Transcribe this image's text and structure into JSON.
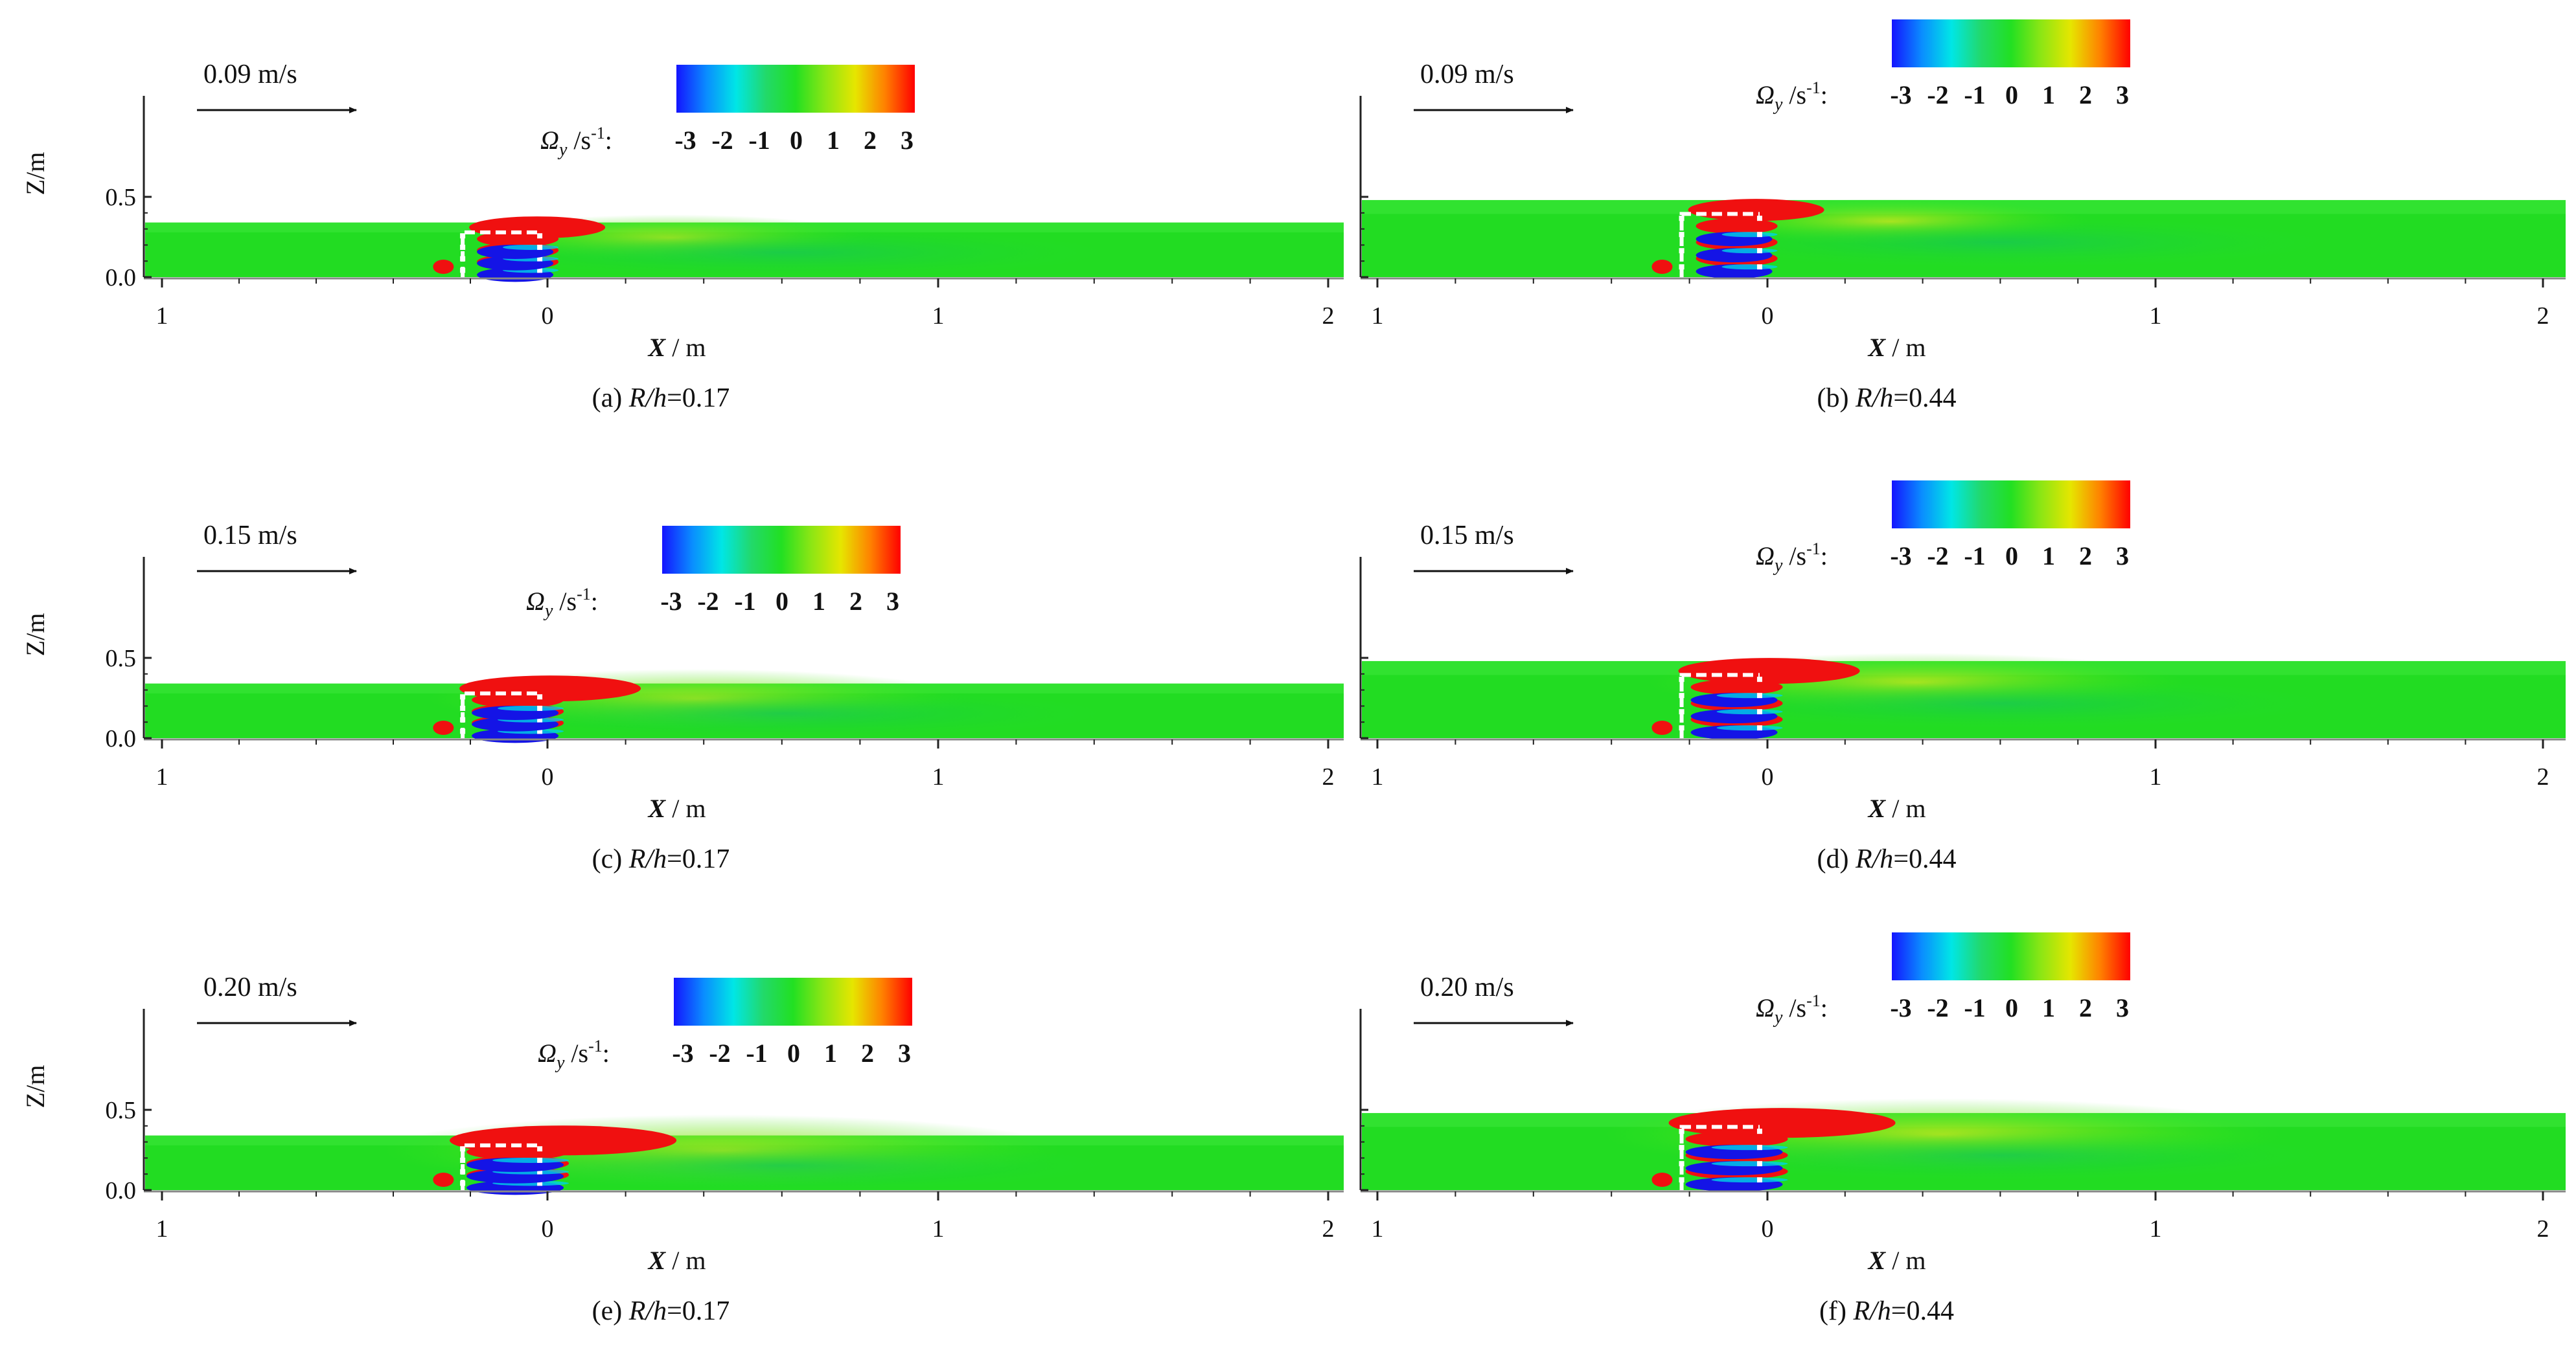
{
  "chart_data": [
    {
      "type": "heatmap",
      "caption_label": "(a)",
      "caption_param": "R/h",
      "caption_value": "=0.17",
      "velocity_label": "0.09 m/s",
      "colorbar_label": "Ω",
      "colorbar_sub": "y",
      "colorbar_unit_a": " /s",
      "colorbar_unit_exp": "-1",
      "colorbar_unit_b": ":",
      "colorbar_ticks": [
        "-3",
        "-2",
        "-1",
        "0",
        "1",
        "2",
        "3"
      ],
      "colorbar_range": [
        -3,
        3
      ],
      "colorbar_colors": [
        "#1414ff",
        "#0a8cff",
        "#00e6e6",
        "#22d96a",
        "#22e022",
        "#8ce614",
        "#e6e600",
        "#ff8000",
        "#ff0000"
      ],
      "xlabel": "X",
      "xlabel_unit": " / m",
      "ylabel": "Z/m",
      "xticks": [
        "1",
        "0",
        "1",
        "2"
      ],
      "yticks": [
        "0.0",
        "0.5"
      ],
      "xlim": [
        -1,
        2
      ],
      "ylim": [
        0,
        0.6
      ],
      "water_depth_m": 0.34,
      "flow_intensity": 1
    },
    {
      "type": "heatmap",
      "caption_label": "(b)",
      "caption_param": "R/h",
      "caption_value": "=0.44",
      "velocity_label": "0.09 m/s",
      "colorbar_label": "Ω",
      "colorbar_sub": "y",
      "colorbar_unit_a": " /s",
      "colorbar_unit_exp": "-1",
      "colorbar_unit_b": ":",
      "colorbar_ticks": [
        "-3",
        "-2",
        "-1",
        "0",
        "1",
        "2",
        "3"
      ],
      "colorbar_range": [
        -3,
        3
      ],
      "colorbar_colors": [
        "#1414ff",
        "#0a8cff",
        "#00e6e6",
        "#22d96a",
        "#22e022",
        "#8ce614",
        "#e6e600",
        "#ff8000",
        "#ff0000"
      ],
      "xlabel": "X",
      "xlabel_unit": " / m",
      "ylabel": "",
      "xticks": [
        "1",
        "0",
        "1",
        "2"
      ],
      "yticks": [
        "",
        ""
      ],
      "xlim": [
        -1,
        2
      ],
      "ylim": [
        0,
        0.6
      ],
      "water_depth_m": 0.48,
      "flow_intensity": 1
    },
    {
      "type": "heatmap",
      "caption_label": "(c)",
      "caption_param": "R/h",
      "caption_value": "=0.17",
      "velocity_label": "0.15 m/s",
      "colorbar_label": "Ω",
      "colorbar_sub": "y",
      "colorbar_unit_a": " /s",
      "colorbar_unit_exp": "-1",
      "colorbar_unit_b": ":",
      "colorbar_ticks": [
        "-3",
        "-2",
        "-1",
        "0",
        "1",
        "2",
        "3"
      ],
      "colorbar_range": [
        -3,
        3
      ],
      "colorbar_colors": [
        "#1414ff",
        "#0a8cff",
        "#00e6e6",
        "#22d96a",
        "#22e022",
        "#8ce614",
        "#e6e600",
        "#ff8000",
        "#ff0000"
      ],
      "xlabel": "X",
      "xlabel_unit": " / m",
      "ylabel": "Z/m",
      "xticks": [
        "1",
        "0",
        "1",
        "2"
      ],
      "yticks": [
        "0.0",
        "0.5"
      ],
      "xlim": [
        -1,
        2
      ],
      "ylim": [
        0,
        0.6
      ],
      "water_depth_m": 0.34,
      "flow_intensity": 2
    },
    {
      "type": "heatmap",
      "caption_label": "(d)",
      "caption_param": "R/h",
      "caption_value": "=0.44",
      "velocity_label": "0.15 m/s",
      "colorbar_label": "Ω",
      "colorbar_sub": "y",
      "colorbar_unit_a": " /s",
      "colorbar_unit_exp": "-1",
      "colorbar_unit_b": ":",
      "colorbar_ticks": [
        "-3",
        "-2",
        "-1",
        "0",
        "1",
        "2",
        "3"
      ],
      "colorbar_range": [
        -3,
        3
      ],
      "colorbar_colors": [
        "#1414ff",
        "#0a8cff",
        "#00e6e6",
        "#22d96a",
        "#22e022",
        "#8ce614",
        "#e6e600",
        "#ff8000",
        "#ff0000"
      ],
      "xlabel": "X",
      "xlabel_unit": " / m",
      "ylabel": "",
      "xticks": [
        "1",
        "0",
        "1",
        "2"
      ],
      "yticks": [
        "",
        ""
      ],
      "xlim": [
        -1,
        2
      ],
      "ylim": [
        0,
        0.6
      ],
      "water_depth_m": 0.48,
      "flow_intensity": 2
    },
    {
      "type": "heatmap",
      "caption_label": "(e)",
      "caption_param": "R/h",
      "caption_value": "=0.17",
      "velocity_label": "0.20 m/s",
      "colorbar_label": "Ω",
      "colorbar_sub": "y",
      "colorbar_unit_a": " /s",
      "colorbar_unit_exp": "-1",
      "colorbar_unit_b": ":",
      "colorbar_ticks": [
        "-3",
        "-2",
        "-1",
        "0",
        "1",
        "2",
        "3"
      ],
      "colorbar_range": [
        -3,
        3
      ],
      "colorbar_colors": [
        "#1414ff",
        "#0a8cff",
        "#00e6e6",
        "#22d96a",
        "#22e022",
        "#8ce614",
        "#e6e600",
        "#ff8000",
        "#ff0000"
      ],
      "xlabel": "X",
      "xlabel_unit": " / m",
      "ylabel": "Z/m",
      "xticks": [
        "1",
        "0",
        "1",
        "2"
      ],
      "yticks": [
        "0.0",
        "0.5"
      ],
      "xlim": [
        -1,
        2
      ],
      "ylim": [
        0,
        0.6
      ],
      "water_depth_m": 0.34,
      "flow_intensity": 3
    },
    {
      "type": "heatmap",
      "caption_label": "(f)",
      "caption_param": "R/h",
      "caption_value": "=0.44",
      "velocity_label": "0.20 m/s",
      "colorbar_label": "Ω",
      "colorbar_sub": "y",
      "colorbar_unit_a": " /s",
      "colorbar_unit_exp": "-1",
      "colorbar_unit_b": ":",
      "colorbar_ticks": [
        "-3",
        "-2",
        "-1",
        "0",
        "1",
        "2",
        "3"
      ],
      "colorbar_range": [
        -3,
        3
      ],
      "colorbar_colors": [
        "#1414ff",
        "#0a8cff",
        "#00e6e6",
        "#22d96a",
        "#22e022",
        "#8ce614",
        "#e6e600",
        "#ff8000",
        "#ff0000"
      ],
      "xlabel": "X",
      "xlabel_unit": " / m",
      "ylabel": "",
      "xticks": [
        "1",
        "0",
        "1",
        "2"
      ],
      "yticks": [
        "",
        ""
      ],
      "xlim": [
        -1,
        2
      ],
      "ylim": [
        0,
        0.6
      ],
      "water_depth_m": 0.48,
      "flow_intensity": 3
    }
  ]
}
